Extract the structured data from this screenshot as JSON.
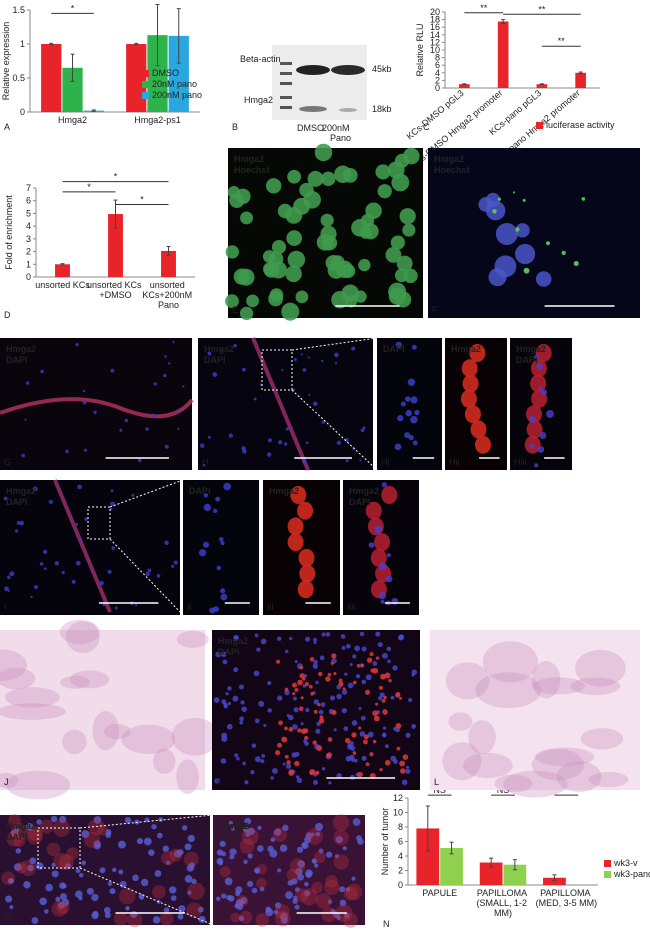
{
  "chart_data": [
    {
      "type": "bar",
      "panel": "A",
      "y_label": "Relative expression",
      "categories": [
        "Hmga2",
        "Hmga2-ps1"
      ],
      "series": [
        {
          "name": "DMSO",
          "color": "#e8232a",
          "values": [
            1,
            1
          ],
          "errors": [
            0.01,
            0.01
          ]
        },
        {
          "name": "20nM pano",
          "color": "#2db34a",
          "values": [
            0.65,
            1.13
          ],
          "errors": [
            0.2,
            0.45
          ]
        },
        {
          "name": "200nM pano",
          "color": "#29a8e0",
          "values": [
            0.02,
            1.12
          ],
          "errors": [
            0.01,
            0.4
          ]
        }
      ],
      "ylim": [
        0,
        1.5
      ],
      "yticks": [
        0,
        0.5,
        1,
        1.5
      ],
      "annotations": [
        "*"
      ]
    },
    {
      "type": "bar",
      "panel": "C",
      "y_label": "Relative RLU",
      "categories": [
        "KCs-DMSO pGL3",
        "KCs-DMSO Hmga2 promoter",
        "KCs-pano pGL3",
        "KCs-pano Hmga2 promoter"
      ],
      "series": [
        {
          "name": "luciferase activity",
          "color": "#e8232a",
          "values": [
            1,
            17.5,
            1,
            4
          ],
          "errors": [
            0.1,
            0.5,
            0.1,
            0.2
          ]
        }
      ],
      "ylim": [
        0,
        20
      ],
      "yticks": [
        0,
        2,
        4,
        6,
        8,
        10,
        12,
        14,
        16,
        18,
        20
      ],
      "annotations": [
        "**",
        "**",
        "**"
      ]
    },
    {
      "type": "bar",
      "panel": "D",
      "y_label": "Fold of enrichment",
      "categories": [
        "unsorted KCs",
        "unsorted KCs +DMSO",
        "unsorted KCs+200nM Pano"
      ],
      "series": [
        {
          "color": "#e8232a",
          "values": [
            1,
            4.95,
            2.05
          ],
          "errors": [
            0.05,
            1.1,
            0.35
          ]
        }
      ],
      "ylim": [
        0,
        7
      ],
      "yticks": [
        0,
        1,
        2,
        3,
        4,
        5,
        6,
        7
      ],
      "annotations": [
        "*",
        "*",
        "*"
      ]
    },
    {
      "type": "bar",
      "panel": "N",
      "y_label": "Number of tumor",
      "categories": [
        "PAPULE",
        "PAPILLOMA (SMALL, 1-2 MM)",
        "PAPILLOMA (MED, 3-5 MM)"
      ],
      "series": [
        {
          "name": "wk3-v",
          "color": "#e8232a",
          "values": [
            7.8,
            3.1,
            1.0
          ],
          "errors": [
            3.1,
            0.6,
            0.4
          ]
        },
        {
          "name": "wk3-pano",
          "color": "#8fd14f",
          "values": [
            5.1,
            2.8,
            0
          ],
          "errors": [
            0.8,
            0.7,
            null
          ]
        }
      ],
      "ylim": [
        0,
        12
      ],
      "yticks": [
        0,
        2,
        4,
        6,
        8,
        10,
        12
      ],
      "annotations": [
        "NS",
        "NS",
        "*"
      ]
    }
  ],
  "blot": {
    "panel": "B",
    "bands": [
      "Beta-actin",
      "Hmga2"
    ],
    "sizes": [
      "45kb",
      "18kb"
    ],
    "lanes": [
      "DMSO",
      "200nM",
      "Pano"
    ]
  },
  "panels": [
    {
      "letter": "E",
      "labels": [
        "Hmga2",
        "Hoechst"
      ]
    },
    {
      "letter": "F",
      "labels": [
        "Hmga2",
        "Hoechst"
      ]
    },
    {
      "letter": "G",
      "labels": [
        "Hmga2",
        "DAPI"
      ]
    },
    {
      "letter": "H",
      "labels": [
        "Hmga2",
        "DAPI"
      ]
    },
    {
      "letter": "Hi",
      "labels": [
        "DAPI"
      ]
    },
    {
      "letter": "Hii",
      "labels": [
        "Hmga2"
      ]
    },
    {
      "letter": "Hiii",
      "labels": [
        "Hmga2",
        "DAPI"
      ]
    },
    {
      "letter": "I",
      "labels": [
        "Hmga2",
        "DAPI"
      ]
    },
    {
      "letter": "Ii",
      "labels": [
        "DAPI"
      ]
    },
    {
      "letter": "Iii",
      "labels": [
        "Hmga2"
      ]
    },
    {
      "letter": "Iiii",
      "labels": [
        "Hmga2",
        "DAPI"
      ]
    },
    {
      "letter": "J"
    },
    {
      "letter": "K",
      "labels": [
        "Hmga2",
        "DAPI"
      ]
    },
    {
      "letter": "L"
    },
    {
      "letter": "M",
      "labels": [
        "Hmga2",
        "DAPI"
      ]
    },
    {
      "letter": "Mi",
      "labels": [
        "Hmga2",
        "DAPI"
      ]
    }
  ]
}
